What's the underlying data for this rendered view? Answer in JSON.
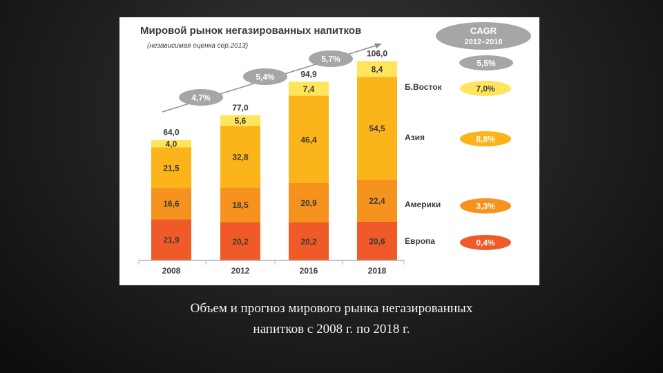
{
  "caption": {
    "line1": "Объем и прогноз мирового рынка негазированных",
    "line2": "напитков с 2008 г. по 2018 г."
  },
  "colors": {
    "europe": "#f05a28",
    "americas": "#f6921e",
    "asia": "#fbb419",
    "middle_east": "#ffe45c",
    "pill_gray": "#a6a6a6",
    "arrow_gray": "#8c8c8c",
    "text": "#3a3a3a"
  },
  "chart_data": {
    "type": "bar",
    "stacked": true,
    "title": "Мировой рынок негазированных напитков",
    "subtitle": "(независимая оценка сер.2013)",
    "categories": [
      "2008",
      "2012",
      "2016",
      "2018"
    ],
    "series": [
      {
        "name": "Европа",
        "values": [
          21.9,
          20.2,
          20.2,
          20.6
        ],
        "labels": [
          "21,9",
          "20,2",
          "20,2",
          "20,6"
        ],
        "cagr": "0,4%",
        "color": "#f05a28"
      },
      {
        "name": "Америки",
        "values": [
          16.6,
          18.5,
          20.9,
          22.4
        ],
        "labels": [
          "16,6",
          "18,5",
          "20,9",
          "22,4"
        ],
        "cagr": "3,3%",
        "color": "#f6921e"
      },
      {
        "name": "Азия",
        "values": [
          21.5,
          32.8,
          46.4,
          54.5
        ],
        "labels": [
          "21,5",
          "32,8",
          "46,4",
          "54,5"
        ],
        "cagr": "8,8%",
        "color": "#fbb419"
      },
      {
        "name": "Б.Восток",
        "values": [
          4.0,
          5.6,
          7.4,
          8.4
        ],
        "labels": [
          "4,0",
          "5,6",
          "7,4",
          "8,4"
        ],
        "cagr": "7,0%",
        "color": "#ffe45c"
      }
    ],
    "totals": [
      "64,0",
      "77,0",
      "94,9",
      "106,0"
    ],
    "total_values": [
      64.0,
      77.0,
      94.9,
      106.0
    ],
    "period_growth": [
      "4,7%",
      "5,4%",
      "5,7%"
    ],
    "cagr_header": {
      "line1": "CAGR",
      "line2": "2012–2018"
    },
    "cagr_total": "5,5%",
    "ylim": [
      0,
      120
    ],
    "grid": false,
    "legend": "right"
  }
}
